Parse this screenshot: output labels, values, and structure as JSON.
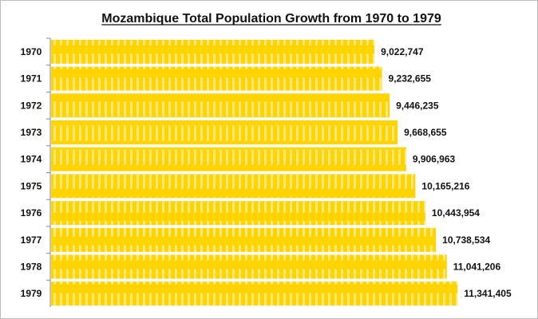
{
  "chart_data": {
    "type": "bar",
    "orientation": "horizontal",
    "title": "Mozambique Total Population Growth from 1970 to 1979",
    "categories": [
      "1970",
      "1971",
      "1972",
      "1973",
      "1974",
      "1975",
      "1976",
      "1977",
      "1978",
      "1979"
    ],
    "values": [
      9022747,
      9232655,
      9446235,
      9668655,
      9906963,
      10165216,
      10443954,
      10738534,
      11041206,
      11341405
    ],
    "value_labels": [
      "9,022,747",
      "9,232,655",
      "9,446,235",
      "9,668,655",
      "9,906,963",
      "10,165,216",
      "10,443,954",
      "10,738,534",
      "11,041,206",
      "11,341,405"
    ],
    "xlim": [
      0,
      13000000
    ],
    "grid": false,
    "colors": {
      "bar": "#FFD400",
      "stripe": "#FFE55C",
      "text": "#111111"
    }
  }
}
